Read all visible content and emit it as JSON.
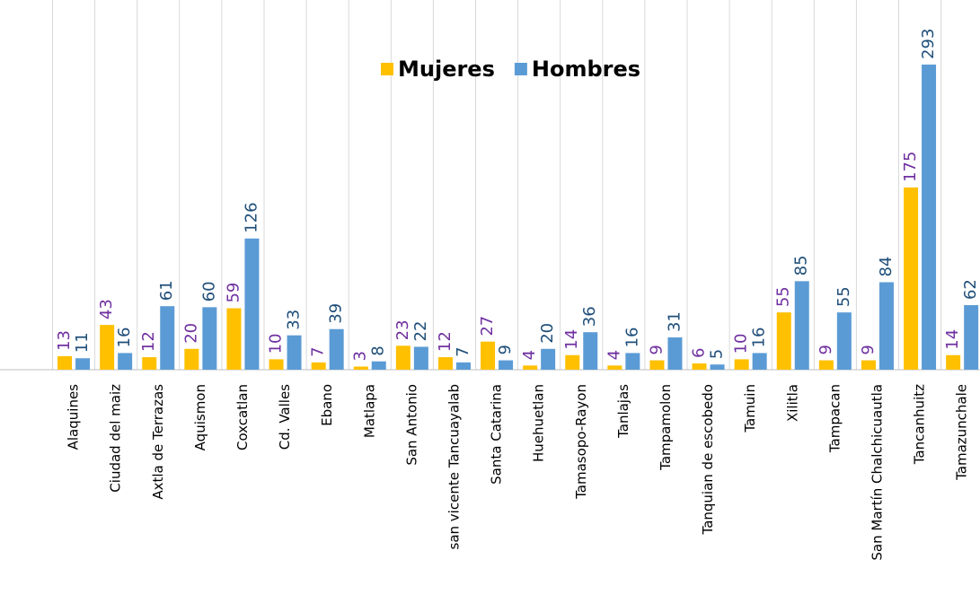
{
  "chart_data": {
    "type": "bar",
    "categories": [
      "Alaquines",
      "Ciudad del maiz",
      "Axtla de Terrazas",
      "Aquismon",
      "Coxcatlan",
      "Cd. Valles",
      "Ebano",
      "Matlapa",
      "San Antonio",
      "san vicente Tancuayalab",
      "Santa Catarina",
      "Huehuetlan",
      "Tamasopo-Rayon",
      "Tanlajas",
      "Tampamolon",
      "Tanquian de escobedo",
      "Tamuin",
      "Xilitla",
      "Tampacan",
      "San Martín Chalchicuautla",
      "Tancanhuitz",
      "Tamazunchale"
    ],
    "series": [
      {
        "name": "Mujeres",
        "color": "#ffc000",
        "label_color": "#7030a0",
        "values": [
          13,
          43,
          12,
          20,
          59,
          10,
          7,
          3,
          23,
          12,
          27,
          4,
          14,
          4,
          9,
          6,
          10,
          55,
          9,
          9,
          175,
          14
        ]
      },
      {
        "name": "Hombres",
        "color": "#5b9bd5",
        "label_color": "#1f4e79",
        "values": [
          11,
          16,
          61,
          60,
          126,
          33,
          39,
          8,
          22,
          7,
          9,
          20,
          36,
          16,
          31,
          5,
          16,
          85,
          55,
          84,
          293,
          62
        ]
      }
    ],
    "ylim": [
      0,
      355
    ],
    "grid": true
  }
}
